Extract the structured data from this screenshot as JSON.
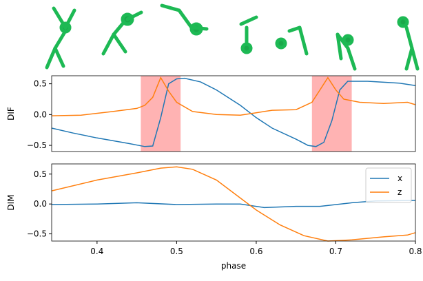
{
  "chart_data": [
    {
      "type": "line",
      "ylabel": "DIF",
      "xlim": [
        0.343,
        0.8
      ],
      "ylim": [
        -0.6,
        0.63
      ],
      "yticks": [
        {
          "value": -0.5,
          "label": "−0.5"
        },
        {
          "value": 0,
          "label": "0.0"
        },
        {
          "value": 0.5,
          "label": "0.5"
        }
      ],
      "spans": [
        [
          0.455,
          0.505
        ],
        [
          0.67,
          0.72
        ]
      ],
      "span_color": "#ffb3b3",
      "series": [
        {
          "color": "#1f77b4",
          "x": [
            0.343,
            0.37,
            0.4,
            0.44,
            0.46,
            0.47,
            0.48,
            0.49,
            0.5,
            0.51,
            0.53,
            0.55,
            0.58,
            0.6,
            0.62,
            0.65,
            0.665,
            0.675,
            0.685,
            0.695,
            0.705,
            0.715,
            0.74,
            0.78,
            0.8
          ],
          "values": [
            -0.22,
            -0.3,
            -0.38,
            -0.47,
            -0.52,
            -0.51,
            -0.05,
            0.5,
            0.58,
            0.59,
            0.53,
            0.4,
            0.15,
            -0.05,
            -0.22,
            -0.4,
            -0.5,
            -0.52,
            -0.45,
            -0.1,
            0.4,
            0.54,
            0.54,
            0.51,
            0.47
          ]
        },
        {
          "color": "#ff7f0e",
          "x": [
            0.343,
            0.38,
            0.42,
            0.45,
            0.46,
            0.47,
            0.48,
            0.49,
            0.5,
            0.52,
            0.55,
            0.58,
            0.6,
            0.62,
            0.65,
            0.67,
            0.68,
            0.69,
            0.7,
            0.71,
            0.73,
            0.76,
            0.79,
            0.8
          ],
          "values": [
            -0.02,
            -0.01,
            0.05,
            0.1,
            0.15,
            0.28,
            0.6,
            0.38,
            0.2,
            0.05,
            0.0,
            -0.01,
            0.03,
            0.07,
            0.08,
            0.2,
            0.4,
            0.6,
            0.4,
            0.25,
            0.2,
            0.18,
            0.2,
            0.16
          ]
        }
      ]
    },
    {
      "type": "line",
      "ylabel": "DIM",
      "xlabel": "phase",
      "xlim": [
        0.343,
        0.8
      ],
      "ylim": [
        -0.62,
        0.67
      ],
      "xticks": [
        0.4,
        0.5,
        0.6,
        0.7,
        0.8
      ],
      "yticks": [
        {
          "value": -0.5,
          "label": "−0.5"
        },
        {
          "value": 0,
          "label": "0.0"
        },
        {
          "value": 0.5,
          "label": "0.5"
        }
      ],
      "legend": "upper right",
      "series": [
        {
          "name": "x",
          "color": "#1f77b4",
          "x": [
            0.343,
            0.4,
            0.45,
            0.5,
            0.55,
            0.58,
            0.61,
            0.65,
            0.68,
            0.72,
            0.75,
            0.8
          ],
          "values": [
            -0.01,
            0.0,
            0.02,
            -0.01,
            0.0,
            0.0,
            -0.06,
            -0.04,
            -0.04,
            0.02,
            0.05,
            0.06
          ]
        },
        {
          "name": "z",
          "color": "#ff7f0e",
          "x": [
            0.343,
            0.4,
            0.45,
            0.48,
            0.5,
            0.52,
            0.55,
            0.58,
            0.6,
            0.63,
            0.66,
            0.69,
            0.72,
            0.76,
            0.79,
            0.8
          ],
          "values": [
            0.22,
            0.4,
            0.52,
            0.6,
            0.62,
            0.58,
            0.4,
            0.1,
            -0.1,
            -0.35,
            -0.53,
            -0.62,
            -0.6,
            -0.55,
            -0.52,
            -0.48
          ]
        }
      ]
    }
  ]
}
